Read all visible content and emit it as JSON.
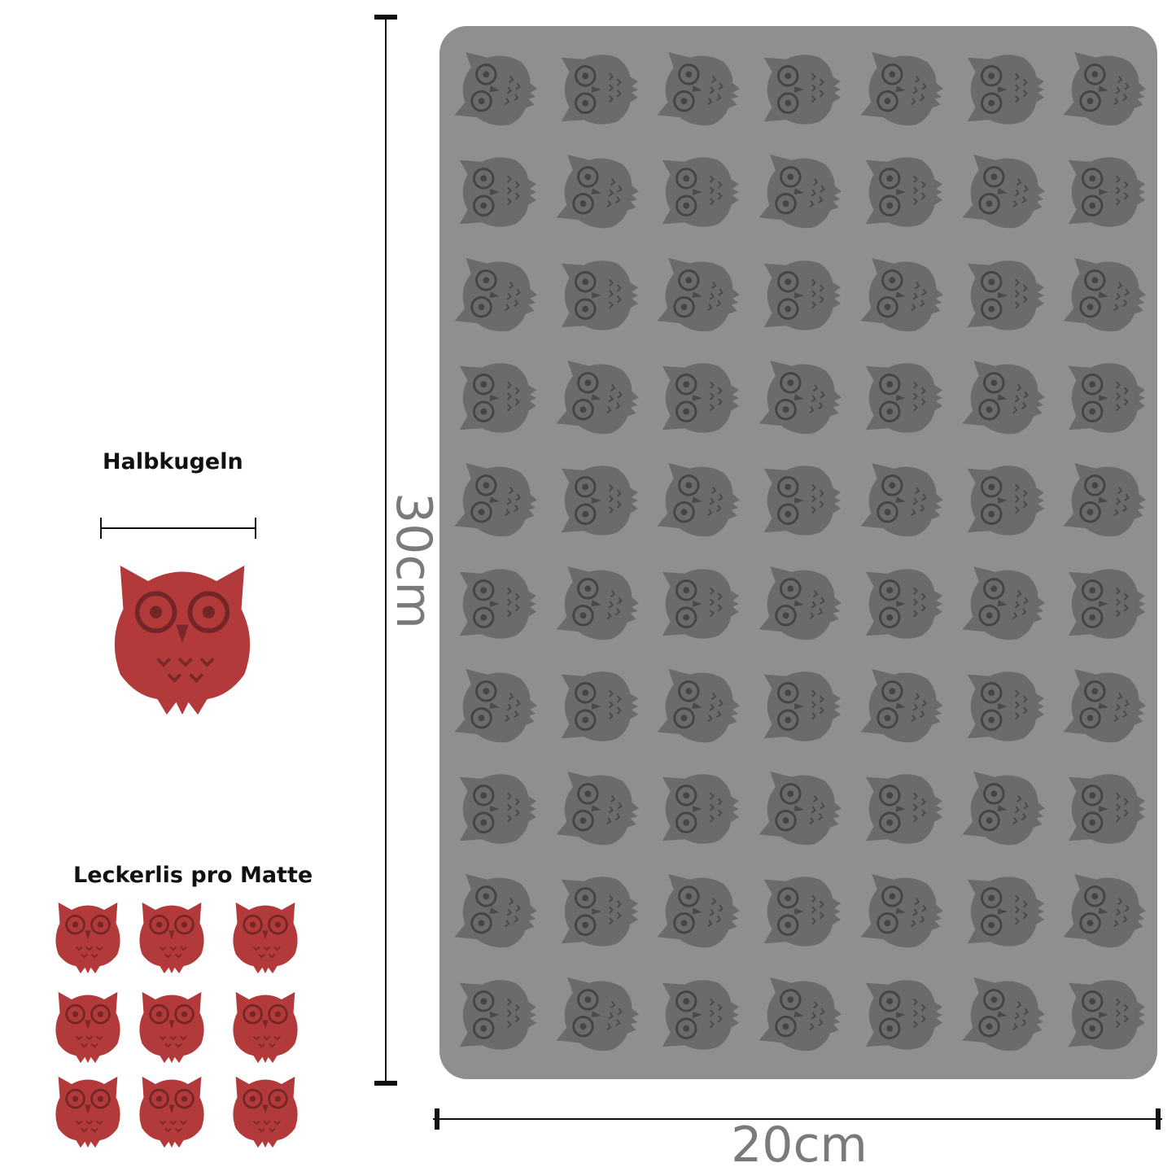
{
  "left_panel": {
    "single_treat_label": "Halbkugeln",
    "treats_per_mat_label": "Leckerlis pro Matte"
  },
  "dimensions": {
    "height_label": "30cm",
    "width_label": "20cm"
  },
  "colors": {
    "mat": "#8f8f8f",
    "cavity": "#6b6b6b",
    "treat": "#b23a3a"
  }
}
